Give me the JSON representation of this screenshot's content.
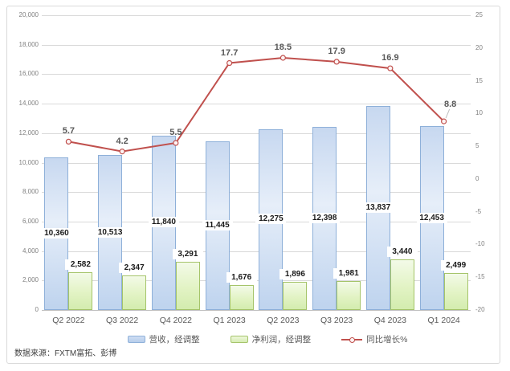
{
  "chart": {
    "source_note": "数据来源：FXTM富拓、彭博",
    "legend": [
      {
        "label": "营收，经调整"
      },
      {
        "label": "净利润，经调整"
      },
      {
        "label": "同比增长%"
      }
    ]
  },
  "chart_data": {
    "type": "combo-bar-line",
    "categories": [
      "Q2 2022",
      "Q3 2022",
      "Q4 2022",
      "Q1 2023",
      "Q2 2023",
      "Q3 2023",
      "Q4 2023",
      "Q1 2024"
    ],
    "series": [
      {
        "name": "营收，经调整",
        "type": "bar",
        "axis": "left",
        "values": [
          10360,
          10513,
          11840,
          11445,
          12275,
          12398,
          13837,
          12453
        ],
        "labels": [
          "10,360",
          "10,513",
          "11,840",
          "11,445",
          "12,275",
          "12,398",
          "13,837",
          "12,453"
        ]
      },
      {
        "name": "净利润，经调整",
        "type": "bar",
        "axis": "left",
        "values": [
          2582,
          2347,
          3291,
          1676,
          1896,
          1981,
          3440,
          2499
        ],
        "labels": [
          "2,582",
          "2,347",
          "3,291",
          "1,676",
          "1,896",
          "1,981",
          "3,440",
          "2,499"
        ]
      },
      {
        "name": "同比增长%",
        "type": "line",
        "axis": "right",
        "values": [
          5.7,
          4.2,
          5.5,
          17.7,
          18.5,
          17.9,
          16.9,
          8.8
        ],
        "labels": [
          "5.7",
          "4.2",
          "5.5",
          "17.7",
          "18.5",
          "17.9",
          "16.9",
          "8.8"
        ]
      }
    ],
    "left_axis": {
      "min": 0,
      "max": 20000,
      "step": 2000,
      "labels": [
        "20,000",
        "18,000",
        "16,000",
        "14,000",
        "12,000",
        "10,000",
        "8,000",
        "6,000",
        "4,000",
        "2,000",
        "0"
      ]
    },
    "right_axis": {
      "min": -20,
      "max": 25,
      "step": 5,
      "labels": [
        "25",
        "20",
        "15",
        "10",
        "5",
        "0",
        "-5",
        "-10",
        "-15",
        "-20"
      ]
    },
    "grid": true,
    "legend_position": "bottom",
    "colors": {
      "revenue_bar_fill": "#c2d5ef",
      "revenue_bar_border": "#8eb0d9",
      "net_profit_bar_fill": "#e0f2c2",
      "net_profit_bar_border": "#a5c46a",
      "growth_line": "#c0504d",
      "gridline": "#d9d9d9",
      "axis_text": "#808080",
      "label_text": "#1a1a1a"
    }
  }
}
